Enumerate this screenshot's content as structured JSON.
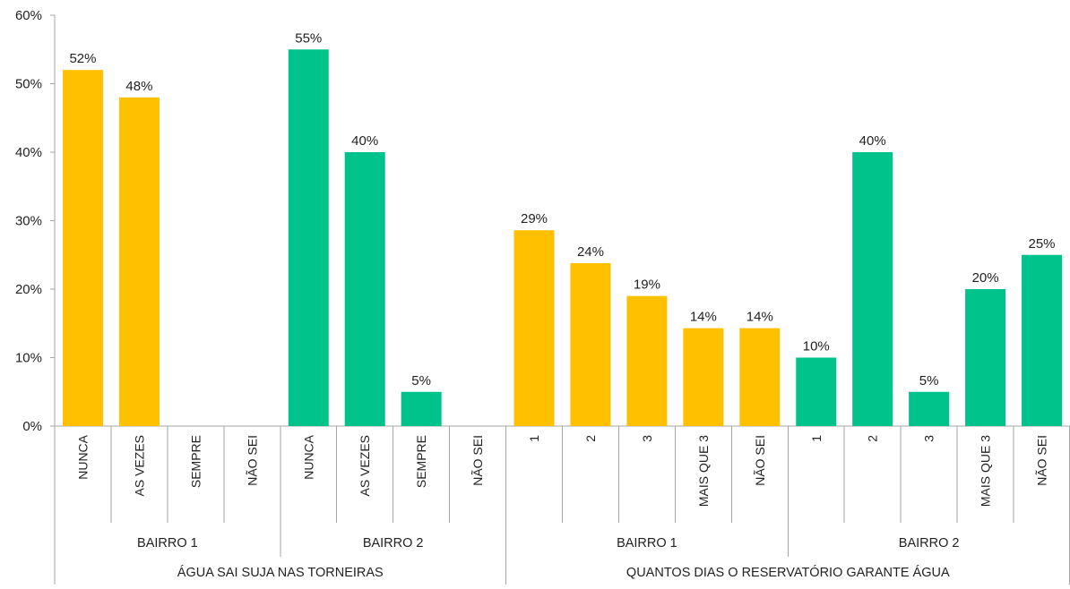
{
  "chart_data": {
    "type": "bar",
    "ylim": [
      0,
      60
    ],
    "yticks": [
      "0%",
      "10%",
      "20%",
      "30%",
      "40%",
      "50%",
      "60%"
    ],
    "ytick_values": [
      0,
      10,
      20,
      30,
      40,
      50,
      60
    ],
    "grid": false,
    "colors": {
      "bairro1": "#FFC000",
      "bairro2": "#00C38C"
    },
    "sections": [
      {
        "label": "ÁGUA SAI SUJA NAS TORNEIRAS",
        "groups": [
          {
            "label": "BAIRRO 1",
            "color_key": "bairro1",
            "categories": [
              "NUNCA",
              "AS VEZES",
              "SEMPRE",
              "NÃO SEI"
            ],
            "values": [
              52,
              48,
              0,
              0
            ],
            "labels": [
              "52%",
              "48%",
              "",
              ""
            ]
          },
          {
            "label": "BAIRRO 2",
            "color_key": "bairro2",
            "categories": [
              "NUNCA",
              "AS VEZES",
              "SEMPRE",
              "NÃO SEI"
            ],
            "values": [
              55,
              40,
              5,
              0
            ],
            "labels": [
              "55%",
              "40%",
              "5%",
              ""
            ]
          }
        ]
      },
      {
        "label": "QUANTOS DIAS O RESERVATÓRIO GARANTE ÁGUA",
        "groups": [
          {
            "label": "BAIRRO 1",
            "color_key": "bairro1",
            "categories": [
              "1",
              "2",
              "3",
              "MAIS QUE 3",
              "NÃO SEI"
            ],
            "values": [
              28.6,
              23.8,
              19,
              14.3,
              14.3
            ],
            "labels": [
              "29%",
              "24%",
              "19%",
              "14%",
              "14%"
            ]
          },
          {
            "label": "BAIRRO 2",
            "color_key": "bairro2",
            "categories": [
              "1",
              "2",
              "3",
              "MAIS QUE 3",
              "NÃO SEI"
            ],
            "values": [
              10,
              40,
              5,
              20,
              25
            ],
            "labels": [
              "10%",
              "40%",
              "5%",
              "20%",
              "25%"
            ]
          }
        ]
      }
    ]
  }
}
